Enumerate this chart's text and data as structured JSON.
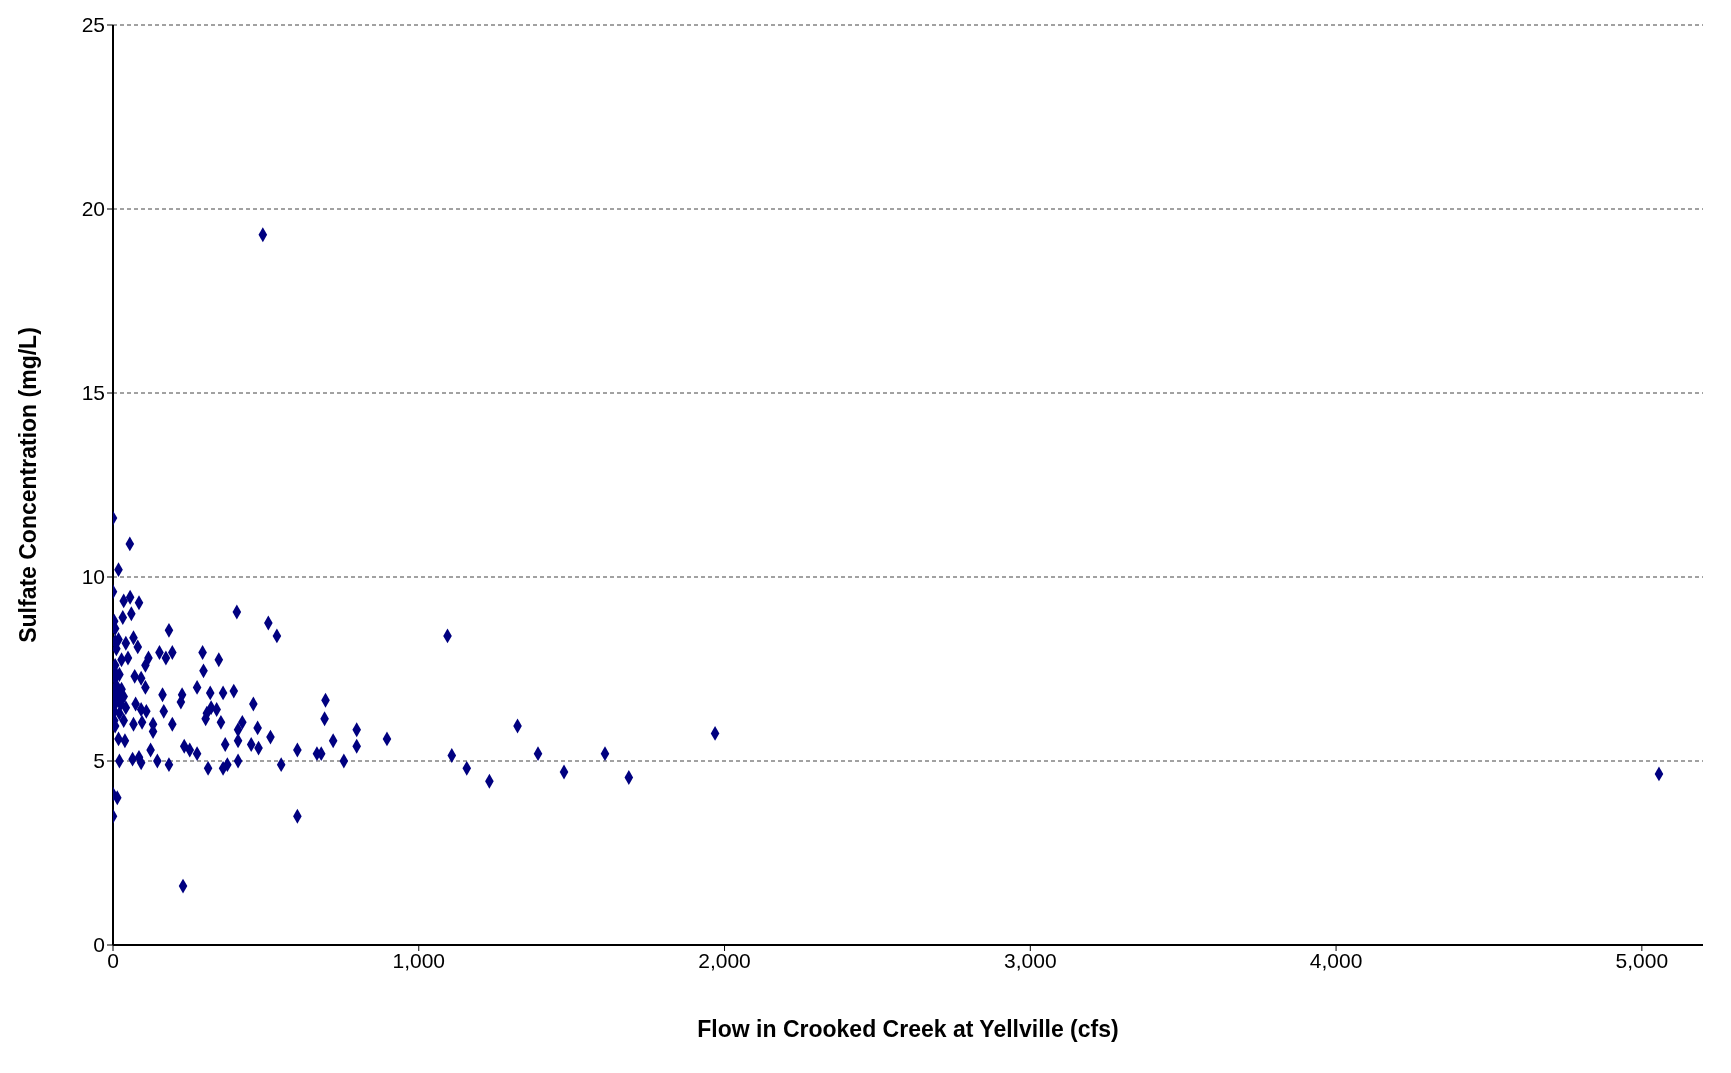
{
  "chart_data": {
    "type": "scatter",
    "xlabel": "Flow in Crooked Creek at Yellville (cfs)",
    "ylabel": "Sulfate Concentration (mg/L)",
    "xlim": [
      0,
      5200
    ],
    "xticks": [
      {
        "value": 0,
        "label": "0"
      },
      {
        "value": 1000,
        "label": "1,000"
      },
      {
        "value": 2000,
        "label": "2,000"
      },
      {
        "value": 3000,
        "label": "3,000"
      },
      {
        "value": 4000,
        "label": "4,000"
      },
      {
        "value": 5000,
        "label": "5,000"
      }
    ],
    "ylim": [
      0,
      25
    ],
    "yticks": [
      0,
      5,
      10,
      15,
      20,
      25
    ],
    "grid": "y",
    "marker": "diamond",
    "legend": false,
    "series": [
      {
        "color": "#000080",
        "x": [
          490,
          0,
          55,
          18,
          0,
          405,
          508,
          536,
          1094,
          1969,
          1323,
          1390,
          1609,
          1108,
          1157,
          1231,
          1475,
          1687,
          5056,
          229,
          603,
          0,
          0,
          14,
          695,
          692,
          720,
          797,
          797,
          896,
          755,
          603,
          667,
          681,
          550,
          515,
          473,
          476,
          452,
          459,
          409,
          423,
          409,
          409,
          374,
          360,
          311,
          367,
          353,
          395,
          360,
          346,
          293,
          296,
          275,
          318,
          321,
          339,
          303,
          307,
          275,
          251,
          233,
          222,
          226,
          194,
          183,
          183,
          194,
          173,
          152,
          166,
          162,
          145,
          123,
          131,
          131,
          109,
          116,
          106,
          106,
          92,
          85,
          56,
          35,
          60,
          32,
          67,
          42,
          81,
          49,
          71,
          28,
          74,
          92,
          95,
          67,
          35,
          42,
          18,
          39,
          64,
          92,
          85,
          21,
          7,
          4,
          7,
          11,
          7,
          4,
          7,
          7,
          4,
          7,
          4,
          4,
          7,
          11,
          18,
          25,
          21,
          28,
          21,
          18,
          35
        ],
        "values": [
          19.3,
          11.6,
          10.9,
          10.2,
          9.6,
          9.05,
          8.75,
          8.4,
          8.4,
          5.75,
          5.95,
          5.2,
          5.2,
          5.15,
          4.8,
          4.45,
          4.7,
          4.55,
          4.65,
          1.6,
          3.5,
          3.5,
          4.1,
          4.0,
          6.65,
          6.15,
          5.55,
          5.85,
          5.4,
          5.6,
          5.0,
          5.3,
          5.2,
          5.2,
          4.9,
          5.65,
          5.9,
          5.35,
          5.45,
          6.55,
          5.85,
          6.05,
          5.55,
          5.0,
          4.9,
          4.8,
          4.8,
          5.45,
          6.05,
          6.9,
          6.85,
          7.75,
          7.95,
          7.45,
          7.0,
          6.85,
          6.45,
          6.4,
          6.15,
          6.3,
          5.2,
          5.3,
          5.4,
          6.6,
          6.8,
          6.0,
          4.9,
          8.55,
          7.95,
          7.8,
          7.95,
          6.35,
          6.8,
          5.0,
          5.3,
          6.0,
          5.8,
          6.35,
          7.8,
          7.6,
          7.0,
          7.25,
          9.3,
          9.45,
          9.35,
          9.0,
          8.9,
          8.35,
          8.2,
          8.1,
          7.8,
          7.3,
          7.75,
          6.55,
          6.4,
          6.05,
          6.0,
          6.1,
          6.45,
          5.6,
          5.55,
          5.05,
          4.95,
          5.1,
          5.0,
          8.6,
          8.8,
          8.25,
          8.05,
          7.6,
          7.45,
          7.25,
          6.95,
          6.75,
          6.55,
          6.35,
          6.1,
          5.95,
          7.05,
          6.75,
          6.55,
          6.3,
          6.95,
          7.35,
          8.3,
          6.75
        ]
      }
    ]
  }
}
